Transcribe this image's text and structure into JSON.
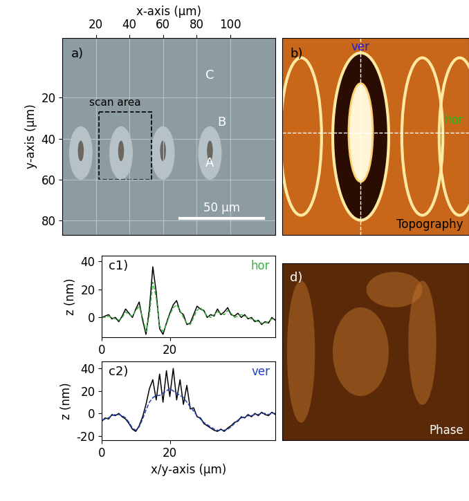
{
  "chart_data": [
    {
      "type": "image",
      "panel_label": "a)",
      "color": "#8d9ba3",
      "xlabel": "x-axis (μm)",
      "ylabel": "y-axis (μm)",
      "xlim": [
        0,
        127
      ],
      "ylim": [
        87,
        -9
      ],
      "xticks": [
        20,
        40,
        60,
        80,
        100
      ],
      "yticks": [
        20,
        40,
        60,
        80
      ],
      "grid": true,
      "annotations": [
        "A",
        "B",
        "C"
      ],
      "scan_area": {
        "label": "scan area",
        "x": [
          22,
          53
        ],
        "y": [
          27,
          60
        ]
      },
      "scale_bar": {
        "label": "50 μm",
        "length": 50
      }
    },
    {
      "type": "image",
      "panel_label": "b)",
      "caption": "Topography",
      "color": "#c8661a",
      "lines": [
        {
          "name": "ver",
          "color": "#2020d0"
        },
        {
          "name": "hor",
          "color": "#20c020"
        }
      ]
    },
    {
      "type": "line",
      "panel_label": "c1)",
      "ylabel": "z (nm)",
      "xlim": [
        0,
        51
      ],
      "ylim": [
        -14,
        44
      ],
      "xticks": [
        0,
        20
      ],
      "yticks": [
        0,
        20,
        40
      ],
      "x": [
        0,
        1,
        2,
        3,
        4,
        5,
        6,
        7,
        8,
        9,
        10,
        11,
        12,
        13,
        14,
        15,
        16,
        17,
        18,
        19,
        20,
        21,
        22,
        23,
        24,
        25,
        26,
        27,
        28,
        29,
        30,
        31,
        32,
        33,
        34,
        35,
        36,
        37,
        38,
        39,
        40,
        41,
        42,
        43,
        44,
        45,
        46,
        47,
        48,
        49,
        50,
        51
      ],
      "series": [
        {
          "color": "#000000",
          "line_style": "solid",
          "values": [
            0,
            1,
            2,
            -1,
            0,
            -3,
            1,
            6,
            3,
            0,
            6,
            11,
            -2,
            -12,
            6,
            36,
            18,
            -8,
            -12,
            -4,
            3,
            9,
            12,
            4,
            2,
            -5,
            -4,
            2,
            8,
            6,
            5,
            0,
            2,
            1,
            6,
            2,
            4,
            7,
            2,
            1,
            3,
            0,
            2,
            -1,
            0,
            -3,
            -2,
            -5,
            -3,
            -4,
            0,
            -2
          ]
        },
        {
          "name": "hor",
          "color": "#3cb043",
          "line_style": "dashed",
          "values": [
            0,
            0,
            1,
            0,
            -1,
            -2,
            0,
            4,
            2,
            1,
            5,
            8,
            0,
            -10,
            2,
            25,
            14,
            -6,
            -10,
            -5,
            2,
            7,
            9,
            5,
            0,
            -4,
            -5,
            0,
            5,
            7,
            4,
            1,
            0,
            2,
            4,
            3,
            2,
            5,
            3,
            0,
            1,
            2,
            1,
            0,
            -1,
            -2,
            -3,
            -4,
            -4,
            -3,
            -1,
            -1
          ]
        }
      ]
    },
    {
      "type": "line",
      "panel_label": "c2)",
      "ylabel": "z (nm)",
      "xlabel": "x/y-axis (μm)",
      "xlim": [
        0,
        51
      ],
      "ylim": [
        -24,
        46
      ],
      "xticks": [
        0,
        20
      ],
      "yticks": [
        -20,
        0,
        20,
        40
      ],
      "x": [
        0,
        1,
        2,
        3,
        4,
        5,
        6,
        7,
        8,
        9,
        10,
        11,
        12,
        13,
        14,
        15,
        16,
        17,
        18,
        19,
        20,
        21,
        22,
        23,
        24,
        25,
        26,
        27,
        28,
        29,
        30,
        31,
        32,
        33,
        34,
        35,
        36,
        37,
        38,
        39,
        40,
        41,
        42,
        43,
        44,
        45,
        46,
        47,
        48,
        49,
        50,
        51
      ],
      "series": [
        {
          "color": "#000000",
          "line_style": "solid",
          "values": [
            -7,
            -4,
            -5,
            -1,
            -2,
            0,
            -3,
            -5,
            -9,
            -14,
            -16,
            -11,
            -3,
            8,
            22,
            30,
            12,
            35,
            10,
            38,
            15,
            40,
            12,
            30,
            8,
            25,
            4,
            5,
            -3,
            -4,
            -9,
            -11,
            -13,
            -15,
            -16,
            -14,
            -16,
            -13,
            -11,
            -8,
            -7,
            -3,
            -4,
            -1,
            -3,
            0,
            -2,
            1,
            -1,
            -2,
            1,
            -1
          ]
        },
        {
          "name": "ver",
          "color": "#1f3fbf",
          "line_style": "dashed",
          "values": [
            -6,
            -5,
            -4,
            -2,
            -1,
            -1,
            -2,
            -4,
            -8,
            -13,
            -15,
            -12,
            -5,
            3,
            10,
            14,
            16,
            16,
            18,
            20,
            22,
            20,
            18,
            16,
            14,
            10,
            6,
            2,
            -2,
            -5,
            -8,
            -10,
            -12,
            -14,
            -15,
            -15,
            -15,
            -14,
            -12,
            -9,
            -6,
            -4,
            -3,
            -2,
            -2,
            -1,
            -1,
            0,
            0,
            -1,
            0,
            0
          ]
        }
      ]
    },
    {
      "type": "image",
      "panel_label": "d)",
      "caption": "Phase",
      "color": "#5a2a08"
    }
  ]
}
